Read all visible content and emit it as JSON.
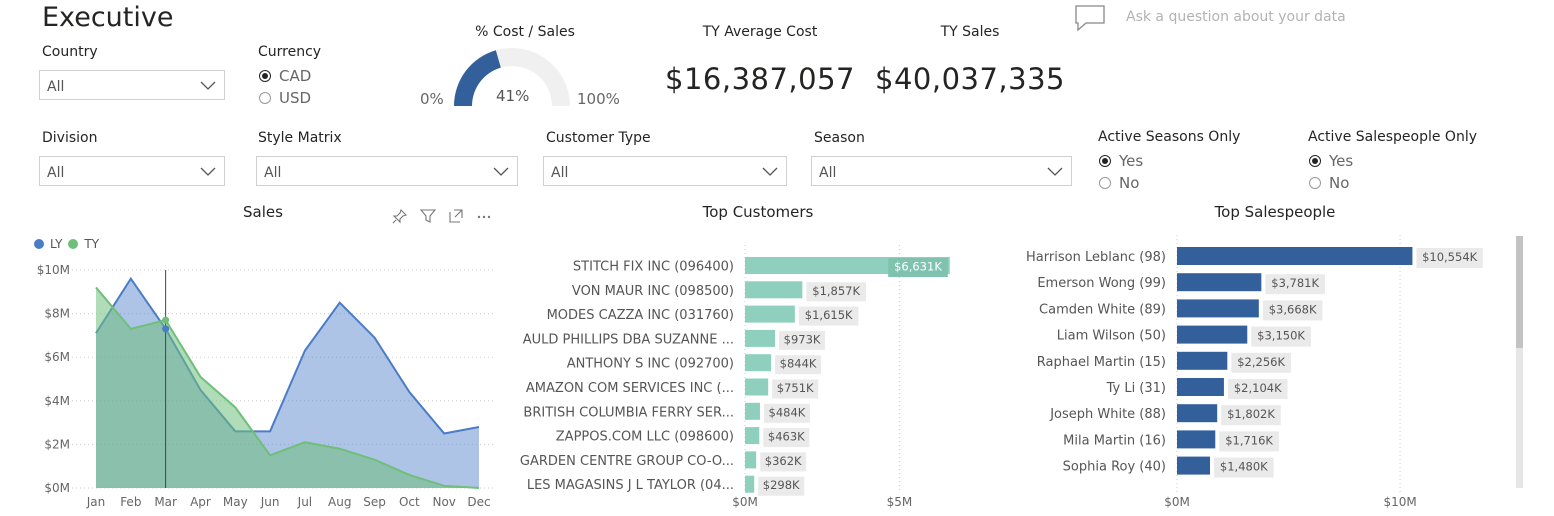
{
  "page_title": "Executive",
  "filters": {
    "country": {
      "label": "Country",
      "value": "All"
    },
    "currency": {
      "label": "Currency",
      "options": [
        "CAD",
        "USD"
      ],
      "selected": "CAD"
    },
    "division": {
      "label": "Division",
      "value": "All"
    },
    "style_matrix": {
      "label": "Style Matrix",
      "value": "All"
    },
    "customer_type": {
      "label": "Customer Type",
      "value": "All"
    },
    "season": {
      "label": "Season",
      "value": "All"
    },
    "active_seasons": {
      "label": "Active Seasons Only",
      "options": [
        "Yes",
        "No"
      ],
      "selected": "Yes"
    },
    "active_salespeople": {
      "label": "Active Salespeople Only",
      "options": [
        "Yes",
        "No"
      ],
      "selected": "Yes"
    }
  },
  "gauge": {
    "title": "% Cost / Sales",
    "value": 0.41,
    "value_label": "41%",
    "min_label": "0%",
    "max_label": "100%",
    "color": "#33609a"
  },
  "kpis": {
    "avg_cost": {
      "title": "TY Average Cost",
      "value": "$16,387,057"
    },
    "sales": {
      "title": "TY Sales",
      "value": "$40,037,335"
    }
  },
  "qa": {
    "placeholder": "Ask a question about your data",
    "icon": "chat-icon"
  },
  "chart_data": [
    {
      "type": "area",
      "title": "Sales",
      "legend": [
        "LY",
        "TY"
      ],
      "legend_placement": "top-left",
      "categories": [
        "Jan",
        "Feb",
        "Mar",
        "Apr",
        "May",
        "Jun",
        "Jul",
        "Aug",
        "Sep",
        "Oct",
        "Nov",
        "Dec"
      ],
      "series": [
        {
          "name": "LY",
          "color": "#4a7cc7",
          "values": [
            7.1,
            9.6,
            7.3,
            4.5,
            2.6,
            2.6,
            6.3,
            8.5,
            6.9,
            4.4,
            2.5,
            2.8
          ]
        },
        {
          "name": "TY",
          "color": "#6fbf7b",
          "values": [
            9.2,
            7.3,
            7.7,
            5.1,
            3.7,
            1.5,
            2.1,
            1.8,
            1.3,
            0.6,
            0.1,
            0.0
          ]
        }
      ],
      "y_ticks": [
        "$0M",
        "$2M",
        "$4M",
        "$6M",
        "$8M",
        "$10M"
      ],
      "ylim": [
        0,
        10
      ],
      "highlight_category": "Mar",
      "grid": true
    },
    {
      "type": "bar",
      "title": "Top Customers",
      "color": "#8ed0bd",
      "categories": [
        "STITCH FIX INC (096400)",
        "VON MAUR INC (098500)",
        "MODES CAZZA INC (031760)",
        "AULD PHILLIPS DBA SUZANNE ...",
        "ANTHONY S INC (092700)",
        "AMAZON COM SERVICES INC (...",
        "BRITISH COLUMBIA FERRY SER...",
        "ZAPPOS.COM LLC (098600)",
        "GARDEN CENTRE GROUP CO-O...",
        "LES MAGASINS J L TAYLOR (04..."
      ],
      "values": [
        6631,
        1857,
        1615,
        973,
        844,
        751,
        484,
        463,
        362,
        298
      ],
      "value_labels": [
        "$6,631K",
        "$1,857K",
        "$1,615K",
        "$973K",
        "$844K",
        "$751K",
        "$484K",
        "$463K",
        "$362K",
        "$298K"
      ],
      "x_ticks": [
        "$0M",
        "$5M"
      ],
      "xlim": [
        0,
        6800
      ]
    },
    {
      "type": "bar",
      "title": "Top Salespeople",
      "color": "#33609a",
      "categories": [
        "Harrison Leblanc (98)",
        "Emerson Wong (99)",
        "Camden White (89)",
        "Liam Wilson (50)",
        "Raphael Martin (15)",
        "Ty Li (31)",
        "Joseph White (88)",
        "Mila Martin (16)",
        "Sophia Roy (40)"
      ],
      "values": [
        10554,
        3781,
        3668,
        3150,
        2256,
        2104,
        1802,
        1716,
        1480
      ],
      "value_labels": [
        "$10,554K",
        "$3,781K",
        "$3,668K",
        "$3,150K",
        "$2,256K",
        "$2,104K",
        "$1,802K",
        "$1,716K",
        "$1,480K"
      ],
      "x_ticks": [
        "$0M",
        "$10M"
      ],
      "xlim": [
        0,
        13000
      ]
    }
  ]
}
